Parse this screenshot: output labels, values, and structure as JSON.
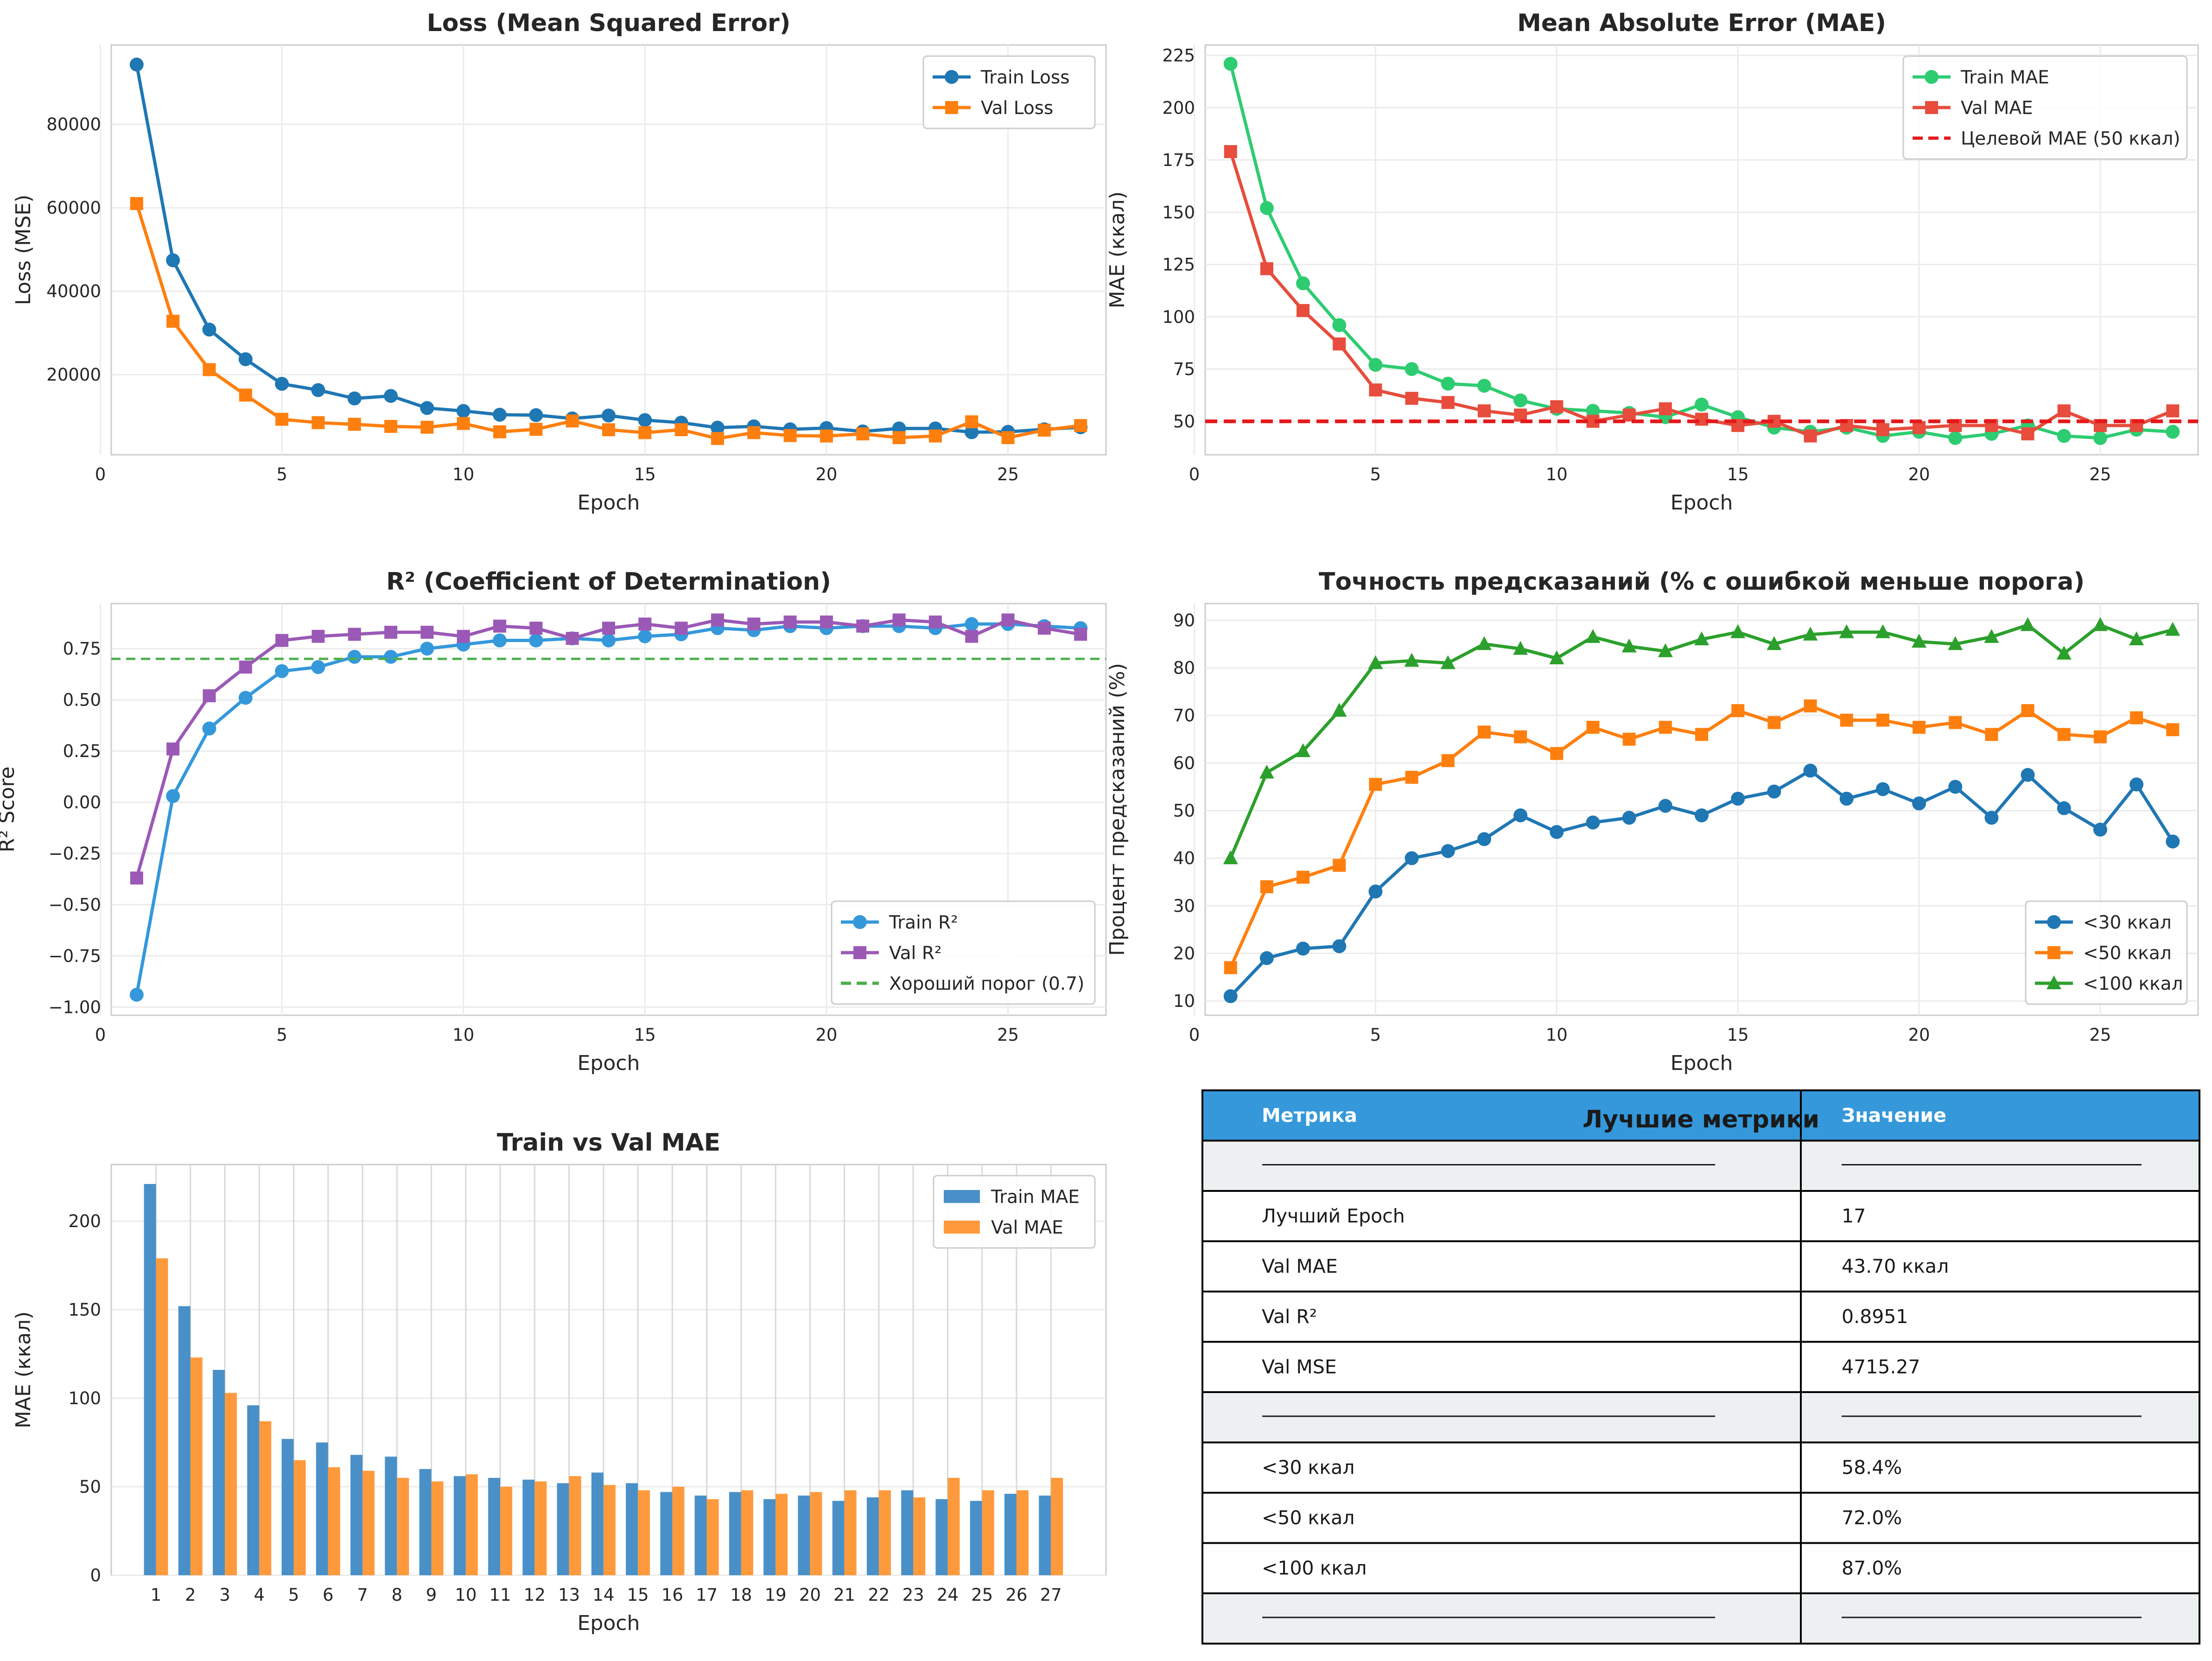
{
  "charts": [
    {
      "id": "loss",
      "type": "line",
      "title": "Loss (Mean Squared Error)",
      "xlabel": "Epoch",
      "ylabel": "Loss (MSE)",
      "xlim": [
        0.3,
        27.7
      ],
      "ylim": [
        800,
        99000
      ],
      "xticks": [
        0,
        5,
        10,
        15,
        20,
        25
      ],
      "yticks": [
        20000,
        40000,
        60000,
        80000
      ],
      "legend": "top-right",
      "x": [
        1,
        2,
        3,
        4,
        5,
        6,
        7,
        8,
        9,
        10,
        11,
        12,
        13,
        14,
        15,
        16,
        17,
        18,
        19,
        20,
        21,
        22,
        23,
        24,
        25,
        26,
        27
      ],
      "series": [
        {
          "name": "Train Loss",
          "color": "#1f77b4",
          "marker": "circle",
          "values": [
            94300,
            47400,
            30800,
            23700,
            17800,
            16300,
            14300,
            14900,
            12000,
            11300,
            10400,
            10300,
            9500,
            10200,
            9100,
            8500,
            7300,
            7600,
            6900,
            7200,
            6400,
            7100,
            7100,
            6200,
            6300,
            6900,
            7400
          ]
        },
        {
          "name": "Val Loss",
          "color": "#ff7f0e",
          "marker": "square",
          "values": [
            61000,
            32800,
            21200,
            15100,
            9300,
            8500,
            8100,
            7600,
            7400,
            8300,
            6300,
            6900,
            8900,
            6800,
            6100,
            6800,
            4700,
            6100,
            5400,
            5300,
            5800,
            4900,
            5300,
            8700,
            4900,
            6700,
            7800
          ]
        }
      ]
    },
    {
      "id": "mae",
      "type": "line",
      "title": "Mean Absolute Error (MAE)",
      "xlabel": "Epoch",
      "ylabel": "MAE (ккал)",
      "xlim": [
        0.3,
        27.7
      ],
      "ylim": [
        34,
        230
      ],
      "xticks": [
        0,
        5,
        10,
        15,
        20,
        25
      ],
      "yticks": [
        50,
        75,
        100,
        125,
        150,
        175,
        200,
        225
      ],
      "legend": "top-right",
      "x": [
        1,
        2,
        3,
        4,
        5,
        6,
        7,
        8,
        9,
        10,
        11,
        12,
        13,
        14,
        15,
        16,
        17,
        18,
        19,
        20,
        21,
        22,
        23,
        24,
        25,
        26,
        27
      ],
      "series": [
        {
          "name": "Train MAE",
          "color": "#2ecc71",
          "marker": "circle",
          "values": [
            221,
            152,
            116,
            96,
            77,
            75,
            68,
            67,
            60,
            56,
            55,
            54,
            52,
            58,
            52,
            47,
            45,
            47,
            43,
            45,
            42,
            44,
            48,
            43,
            42,
            46,
            45
          ]
        },
        {
          "name": "Val MAE",
          "color": "#e74c3c",
          "marker": "square",
          "values": [
            179,
            123,
            103,
            87,
            65,
            61,
            59,
            55,
            53,
            57,
            50,
            53,
            56,
            51,
            48,
            50,
            43,
            48,
            46,
            47,
            48,
            48,
            44,
            55,
            48,
            48,
            55
          ]
        }
      ],
      "hline": {
        "value": 50,
        "label": "Целевой MAE (50 ккал)",
        "color": "#e41a1c",
        "style": "dashed"
      }
    },
    {
      "id": "r2",
      "type": "line",
      "title": "R² (Coefficient of Determination)",
      "xlabel": "Epoch",
      "ylabel": "R² Score",
      "xlim": [
        0.3,
        27.7
      ],
      "ylim": [
        -1.04,
        0.97
      ],
      "xticks": [
        0,
        5,
        10,
        15,
        20,
        25
      ],
      "yticks": [
        -1.0,
        -0.75,
        -0.5,
        -0.25,
        0.0,
        0.25,
        0.5,
        0.75
      ],
      "ytick_labels": [
        "−1.00",
        "−0.75",
        "−0.50",
        "−0.25",
        "0.00",
        "0.25",
        "0.50",
        "0.75"
      ],
      "legend": "bottom-right",
      "x": [
        1,
        2,
        3,
        4,
        5,
        6,
        7,
        8,
        9,
        10,
        11,
        12,
        13,
        14,
        15,
        16,
        17,
        18,
        19,
        20,
        21,
        22,
        23,
        24,
        25,
        26,
        27
      ],
      "series": [
        {
          "name": "Train R²",
          "color": "#3498db",
          "marker": "circle",
          "values": [
            -0.94,
            0.03,
            0.36,
            0.51,
            0.64,
            0.66,
            0.71,
            0.71,
            0.75,
            0.77,
            0.79,
            0.79,
            0.8,
            0.79,
            0.81,
            0.82,
            0.85,
            0.84,
            0.86,
            0.85,
            0.86,
            0.86,
            0.85,
            0.87,
            0.87,
            0.86,
            0.85
          ]
        },
        {
          "name": "Val R²",
          "color": "#9b59b6",
          "marker": "square",
          "values": [
            -0.37,
            0.26,
            0.52,
            0.66,
            0.79,
            0.81,
            0.82,
            0.83,
            0.83,
            0.81,
            0.86,
            0.85,
            0.8,
            0.85,
            0.87,
            0.85,
            0.89,
            0.87,
            0.88,
            0.88,
            0.86,
            0.89,
            0.88,
            0.81,
            0.89,
            0.85,
            0.82
          ]
        }
      ],
      "hline": {
        "value": 0.7,
        "label": "Хороший порог (0.7)",
        "color": "#4daf4a",
        "style": "dashed"
      }
    },
    {
      "id": "accuracy",
      "type": "line",
      "title": "Точность предсказаний (% с ошибкой меньше порога)",
      "xlabel": "Epoch",
      "ylabel": "Процент предсказаний (%)",
      "xlim": [
        0.3,
        27.7
      ],
      "ylim": [
        7,
        93.5
      ],
      "xticks": [
        0,
        5,
        10,
        15,
        20,
        25
      ],
      "yticks": [
        10,
        20,
        30,
        40,
        50,
        60,
        70,
        80,
        90
      ],
      "legend": "bottom-right",
      "x": [
        1,
        2,
        3,
        4,
        5,
        6,
        7,
        8,
        9,
        10,
        11,
        12,
        13,
        14,
        15,
        16,
        17,
        18,
        19,
        20,
        21,
        22,
        23,
        24,
        25,
        26,
        27
      ],
      "series": [
        {
          "name": "<30 ккал",
          "color": "#1f77b4",
          "marker": "circle",
          "values": [
            11,
            19,
            21,
            21.5,
            33,
            40,
            41.5,
            44,
            49,
            45.5,
            47.5,
            48.5,
            51,
            49,
            52.5,
            54,
            58.4,
            52.5,
            54.5,
            51.5,
            55,
            48.5,
            57.5,
            50.5,
            46,
            55.5,
            43.5
          ]
        },
        {
          "name": "<50 ккал",
          "color": "#ff7f0e",
          "marker": "square",
          "values": [
            17,
            34,
            36,
            38.5,
            55.5,
            57,
            60.5,
            66.5,
            65.5,
            62,
            67.5,
            65,
            67.5,
            66,
            71,
            68.5,
            72,
            69,
            69,
            67.5,
            68.5,
            66,
            71,
            66,
            65.5,
            69.5,
            67
          ]
        },
        {
          "name": "<100 ккал",
          "color": "#2ca02c",
          "marker": "triangle",
          "values": [
            40,
            58,
            62.5,
            71,
            81,
            81.5,
            81,
            85,
            84,
            82,
            86.5,
            84.5,
            83.5,
            86,
            87.5,
            85,
            87,
            87.5,
            87.5,
            85.5,
            85,
            86.5,
            89,
            83,
            89,
            86,
            88
          ]
        }
      ]
    },
    {
      "id": "bars",
      "type": "bar",
      "title": "Train vs Val MAE",
      "xlabel": "Epoch",
      "ylabel": "MAE (ккал)",
      "ylim": [
        0,
        232
      ],
      "yticks": [
        0,
        50,
        100,
        150,
        200
      ],
      "legend": "top-right",
      "categories": [
        "1",
        "2",
        "3",
        "4",
        "5",
        "6",
        "7",
        "8",
        "9",
        "10",
        "11",
        "12",
        "13",
        "14",
        "15",
        "16",
        "17",
        "18",
        "19",
        "20",
        "21",
        "22",
        "23",
        "24",
        "25",
        "26",
        "27"
      ],
      "series": [
        {
          "name": "Train MAE",
          "color": "#4a90c8",
          "values": [
            221,
            152,
            116,
            96,
            77,
            75,
            68,
            67,
            60,
            56,
            55,
            54,
            52,
            58,
            52,
            47,
            45,
            47,
            43,
            45,
            42,
            44,
            48,
            43,
            42,
            46,
            45
          ]
        },
        {
          "name": "Val MAE",
          "color": "#ff9a3c",
          "values": [
            179,
            123,
            103,
            87,
            65,
            61,
            59,
            55,
            53,
            57,
            50,
            53,
            56,
            51,
            48,
            50,
            43,
            48,
            46,
            47,
            48,
            48,
            44,
            55,
            48,
            48,
            55
          ]
        }
      ]
    }
  ],
  "table": {
    "title": "Лучшие метрики",
    "header": [
      "Метрика",
      "Значение"
    ],
    "header_color": "#3498db",
    "rows": [
      [
        "──────────────────────────────",
        "───────────────────"
      ],
      [
        "Лучший Epoch",
        "17"
      ],
      [
        "Val MAE",
        "43.70 ккал"
      ],
      [
        "Val R²",
        "0.8951"
      ],
      [
        "Val MSE",
        "4715.27"
      ],
      [
        "──────────────────────────────",
        "───────────────────"
      ],
      [
        "<30 ккал",
        "58.4%"
      ],
      [
        "<50 ккал",
        "72.0%"
      ],
      [
        "<100 ккал",
        "87.0%"
      ],
      [
        "──────────────────────────────",
        "───────────────────"
      ]
    ]
  }
}
